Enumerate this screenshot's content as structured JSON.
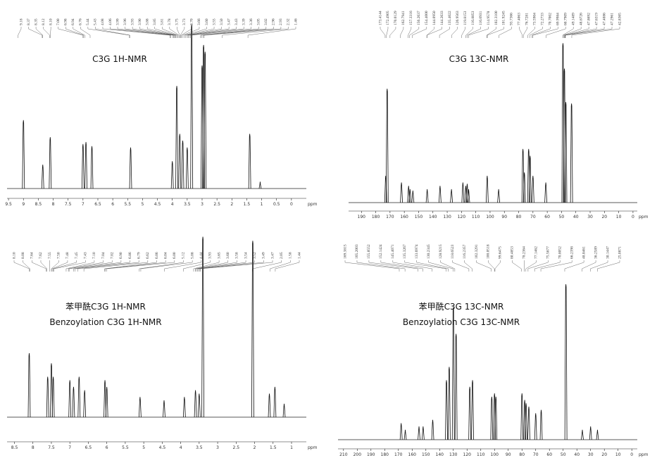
{
  "chart_data": [
    {
      "type": "spectrum",
      "title": "C3G 1H-NMR",
      "xlabel": "ppm",
      "xlim": [
        9.55,
        -0.5
      ],
      "ylim": [
        0,
        250
      ],
      "xticks": [
        9.5,
        9.0,
        8.5,
        8.0,
        7.5,
        7.0,
        6.5,
        6.0,
        5.5,
        5.0,
        4.5,
        4.0,
        3.5,
        3.0,
        2.5,
        2.0,
        1.5,
        1.0,
        0.5,
        0.0
      ],
      "x": [
        9.0,
        8.35,
        8.1,
        7.0,
        6.9,
        6.7,
        5.4,
        4.0,
        3.85,
        3.75,
        3.65,
        3.5,
        3.35,
        3.0,
        2.95,
        2.9,
        1.4,
        1.05
      ],
      "values": [
        100,
        35,
        75,
        65,
        68,
        62,
        60,
        40,
        150,
        80,
        70,
        60,
        240,
        180,
        210,
        200,
        80,
        10
      ],
      "peak_labels": [
        "9.18",
        "8.37",
        "8.35",
        "8.12",
        "8.10",
        "7.00",
        "6.98",
        "6.94",
        "6.76",
        "5.44",
        "5.43",
        "4.08",
        "4.06",
        "3.99",
        "3.96",
        "3.93",
        "3.90",
        "3.88",
        "3.85",
        "3.81",
        "3.78",
        "3.75",
        "3.73",
        "3.70",
        "3.66",
        "3.60",
        "3.55",
        "3.50",
        "3.47",
        "3.43",
        "3.39",
        "3.36",
        "3.05",
        "3.02",
        "2.96",
        "2.93",
        "2.32",
        "1.46"
      ]
    },
    {
      "type": "spectrum",
      "title": "C3G 13C-NMR",
      "xlabel": "ppm",
      "xlim": [
        199,
        -3
      ],
      "ylim": [
        0,
        250
      ],
      "xticks": [
        190,
        180,
        170,
        160,
        150,
        140,
        130,
        120,
        110,
        100,
        90,
        80,
        70,
        60,
        50,
        40,
        30,
        20,
        10,
        0
      ],
      "x": [
        173,
        172,
        162,
        157,
        156,
        154,
        144,
        135,
        127,
        119,
        117,
        116,
        115,
        102,
        94,
        77,
        76,
        73,
        72,
        70,
        61,
        49,
        48,
        47,
        43
      ],
      "values": [
        40,
        170,
        30,
        25,
        20,
        18,
        20,
        25,
        20,
        30,
        25,
        28,
        20,
        40,
        20,
        80,
        45,
        80,
        70,
        40,
        30,
        238,
        200,
        150,
        148
      ],
      "peak_labels": [
        "173.4144",
        "172.4905",
        "170.0129",
        "162.7941",
        "157.3316",
        "156.2637",
        "154.4000",
        "144.0950",
        "144.2633",
        "135.4022",
        "126.9563",
        "119.8153",
        "116.8853",
        "116.0931",
        "114.9578",
        "102.3100",
        "101.9245",
        "93.7366",
        "77.4063",
        "76.7281",
        "73.5904",
        "72.2733",
        "70.7002",
        "69.9984",
        "60.7909",
        "49.1489",
        "48.6726",
        "47.8692",
        "47.6319",
        "47.4086",
        "47.2961",
        "42.8365"
      ]
    },
    {
      "type": "spectrum",
      "title": "苯甲酰C3G 1H-NMR",
      "subtitle": "Benzoylation C3G 1H-NMR",
      "xlabel": "ppm",
      "xlim": [
        8.7,
        0.6
      ],
      "ylim": [
        0,
        280
      ],
      "xticks": [
        8.5,
        8.0,
        7.5,
        7.0,
        6.5,
        6.0,
        5.5,
        5.0,
        4.5,
        4.0,
        3.5,
        3.0,
        2.5,
        2.0,
        1.5,
        1.0
      ],
      "x": [
        8.1,
        7.6,
        7.5,
        7.45,
        7.0,
        6.9,
        6.75,
        6.6,
        6.05,
        6.0,
        5.1,
        4.45,
        3.9,
        3.6,
        3.5,
        3.4,
        2.05,
        1.6,
        1.45,
        1.2
      ],
      "values": [
        95,
        60,
        80,
        60,
        55,
        45,
        60,
        40,
        55,
        45,
        30,
        25,
        30,
        40,
        35,
        268,
        262,
        35,
        45,
        20
      ],
      "peak_labels": [
        "8.10",
        "8.08",
        "7.64",
        "7.62",
        "7.55",
        "7.50",
        "7.48",
        "7.45",
        "7.43",
        "7.10",
        "7.04",
        "7.02",
        "6.90",
        "6.86",
        "6.79",
        "6.62",
        "6.06",
        "6.04",
        "6.00",
        "5.12",
        "5.08",
        "4.44",
        "3.93",
        "3.65",
        "3.60",
        "3.58",
        "3.54",
        "3.52",
        "3.49",
        "3.47",
        "2.05",
        "1.58",
        "1.44"
      ]
    },
    {
      "type": "spectrum",
      "title": "苯甲酰C3G 13C-NMR",
      "subtitle": "Benzoylation C3G 13C-NMR",
      "xlabel": "ppm",
      "xlim": [
        214,
        -4
      ],
      "ylim": [
        0,
        250
      ],
      "xticks": [
        210,
        200,
        190,
        180,
        170,
        160,
        150,
        140,
        130,
        120,
        110,
        100,
        90,
        80,
        70,
        60,
        50,
        40,
        30,
        20,
        10,
        0
      ],
      "x": [
        168,
        165,
        155,
        152,
        145,
        135,
        133,
        130,
        128,
        118,
        116,
        102,
        100,
        99,
        80,
        78,
        77,
        75,
        70,
        66,
        48,
        36,
        30,
        25
      ],
      "values": [
        25,
        15,
        20,
        20,
        30,
        90,
        110,
        200,
        160,
        80,
        90,
        65,
        70,
        65,
        70,
        60,
        55,
        50,
        40,
        45,
        235,
        15,
        20,
        15
      ],
      "peak_labels": [
        "169.3815",
        "165.2003",
        "155.8552",
        "152.1424",
        "145.4071",
        "135.3267",
        "133.6974",
        "130.2345",
        "128.9215",
        "118.6523",
        "116.2357",
        "102.3291",
        "100.0518",
        "99.6475",
        "80.4853",
        "78.2364",
        "77.1462",
        "75.5677",
        "70.8052",
        "66.2398",
        "48.8461",
        "36.2589",
        "30.1447",
        "25.0871"
      ]
    }
  ]
}
